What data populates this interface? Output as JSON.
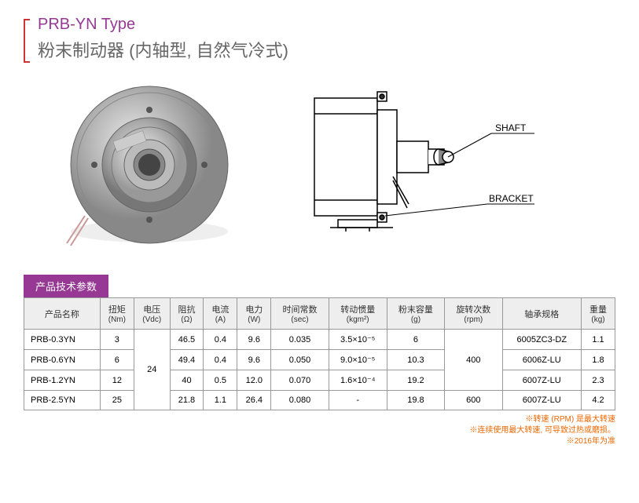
{
  "header": {
    "type_label": "PRB-YN Type",
    "title_cn": "粉末制动器 (内轴型, 自然气冷式)"
  },
  "diagram": {
    "label_shaft": "SHAFT",
    "label_bracket": "BRACKET"
  },
  "section_label": "产品技术参数",
  "table": {
    "columns": [
      {
        "label": "产品名称",
        "unit": ""
      },
      {
        "label": "扭矩",
        "unit": "(Nm)"
      },
      {
        "label": "电压",
        "unit": "(Vdc)"
      },
      {
        "label": "阻抗",
        "unit": "(Ω)"
      },
      {
        "label": "电流",
        "unit": "(A)"
      },
      {
        "label": "电力",
        "unit": "(W)"
      },
      {
        "label": "时间常数",
        "unit": "(sec)"
      },
      {
        "label": "转动惯量",
        "unit": "(kgm²)"
      },
      {
        "label": "粉末容量",
        "unit": "(g)"
      },
      {
        "label": "旋转次数",
        "unit": "(rpm)"
      },
      {
        "label": "轴承规格",
        "unit": ""
      },
      {
        "label": "重量",
        "unit": "(kg)"
      }
    ],
    "voltage_merged": "24",
    "rpm_merged_123": "400",
    "rows": [
      {
        "name": "PRB-0.3YN",
        "torque": "3",
        "ohm": "46.5",
        "amp": "0.4",
        "watt": "9.6",
        "sec": "0.035",
        "inertia": "3.5×10⁻⁵",
        "powder": "6",
        "rpm": "",
        "bearing": "6005ZC3-DZ",
        "weight": "1.1"
      },
      {
        "name": "PRB-0.6YN",
        "torque": "6",
        "ohm": "49.4",
        "amp": "0.4",
        "watt": "9.6",
        "sec": "0.050",
        "inertia": "9.0×10⁻⁵",
        "powder": "10.3",
        "rpm": "",
        "bearing": "6006Z-LU",
        "weight": "1.8"
      },
      {
        "name": "PRB-1.2YN",
        "torque": "12",
        "ohm": "40",
        "amp": "0.5",
        "watt": "12.0",
        "sec": "0.070",
        "inertia": "1.6×10⁻⁴",
        "powder": "19.2",
        "rpm": "",
        "bearing": "6007Z-LU",
        "weight": "2.3"
      },
      {
        "name": "PRB-2.5YN",
        "torque": "25",
        "ohm": "21.8",
        "amp": "1.1",
        "watt": "26.4",
        "sec": "0.080",
        "inertia": "-",
        "powder": "19.8",
        "rpm": "600",
        "bearing": "6007Z-LU",
        "weight": "4.2"
      }
    ]
  },
  "footnotes": [
    "※转速 (RPM) 是最大转速",
    "※连续使用最大转速, 可导致过热或磨损。",
    "※2016年为准"
  ],
  "colors": {
    "accent": "#963894",
    "red": "#c33",
    "footnote": "#e60",
    "border": "#999",
    "th_bg": "#eee"
  }
}
